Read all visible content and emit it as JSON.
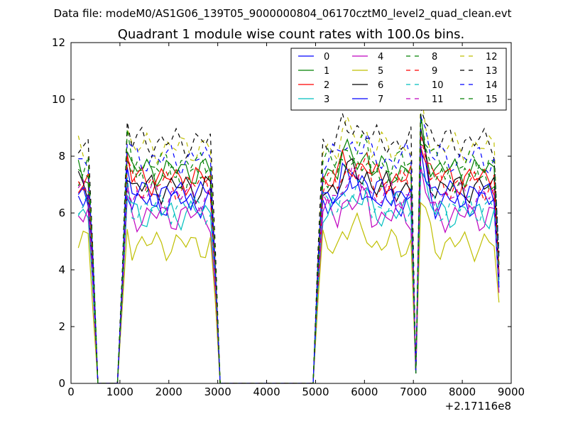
{
  "figure": {
    "suptitle": "Data file: modeM0/AS1G06_139T05_9000000804_06170cztM0_level2_quad_clean.evt"
  },
  "chart_data": {
    "type": "line",
    "title": "Quadrant 1 module wise count rates with 100.0s bins.",
    "xlabel": "",
    "ylabel": "",
    "x_offset_label": "+2.17116e8",
    "xlim": [
      0,
      9000
    ],
    "ylim": [
      0,
      12
    ],
    "x_ticks": [
      0,
      1000,
      2000,
      3000,
      4000,
      5000,
      6000,
      7000,
      8000,
      9000
    ],
    "y_ticks": [
      0,
      2,
      4,
      6,
      8,
      10,
      12
    ],
    "grid": false,
    "legend_position": "top-right",
    "legend_columns": 4,
    "x": [
      150,
      250,
      350,
      450,
      550,
      650,
      750,
      850,
      950,
      1050,
      1150,
      1250,
      1350,
      1450,
      1550,
      1650,
      1750,
      1850,
      1950,
      2050,
      2150,
      2250,
      2350,
      2450,
      2550,
      2650,
      2750,
      2850,
      2950,
      3050,
      3150,
      3250,
      3350,
      3450,
      3550,
      3650,
      3750,
      3850,
      3950,
      4050,
      4150,
      4250,
      4350,
      4450,
      4550,
      4650,
      4750,
      4850,
      4950,
      5050,
      5150,
      5250,
      5350,
      5450,
      5550,
      5650,
      5750,
      5850,
      5950,
      6050,
      6150,
      6250,
      6350,
      6450,
      6550,
      6650,
      6750,
      6850,
      6950,
      7050,
      7150,
      7250,
      7350,
      7450,
      7550,
      7650,
      7750,
      7850,
      7950,
      8050,
      8150,
      8250,
      8350,
      8450,
      8550,
      8650,
      8750
    ],
    "series": [
      {
        "name": "0",
        "color": "#0000ff",
        "dash": "solid"
      },
      {
        "name": "1",
        "color": "#008000",
        "dash": "solid"
      },
      {
        "name": "2",
        "color": "#ff0000",
        "dash": "solid"
      },
      {
        "name": "3",
        "color": "#00bfbf",
        "dash": "solid"
      },
      {
        "name": "4",
        "color": "#bf00bf",
        "dash": "solid"
      },
      {
        "name": "5",
        "color": "#bfbf00",
        "dash": "solid"
      },
      {
        "name": "6",
        "color": "#000000",
        "dash": "solid"
      },
      {
        "name": "7",
        "color": "#0000ff",
        "dash": "solid"
      },
      {
        "name": "8",
        "color": "#008000",
        "dash": "dashed"
      },
      {
        "name": "9",
        "color": "#ff0000",
        "dash": "dashed"
      },
      {
        "name": "10",
        "color": "#00bfbf",
        "dash": "dashed"
      },
      {
        "name": "11",
        "color": "#bf00bf",
        "dash": "dashed"
      },
      {
        "name": "12",
        "color": "#bfbf00",
        "dash": "dashed"
      },
      {
        "name": "13",
        "color": "#000000",
        "dash": "dashed"
      },
      {
        "name": "14",
        "color": "#0000ff",
        "dash": "dashed"
      },
      {
        "name": "15",
        "color": "#008000",
        "dash": "dashed"
      }
    ]
  }
}
